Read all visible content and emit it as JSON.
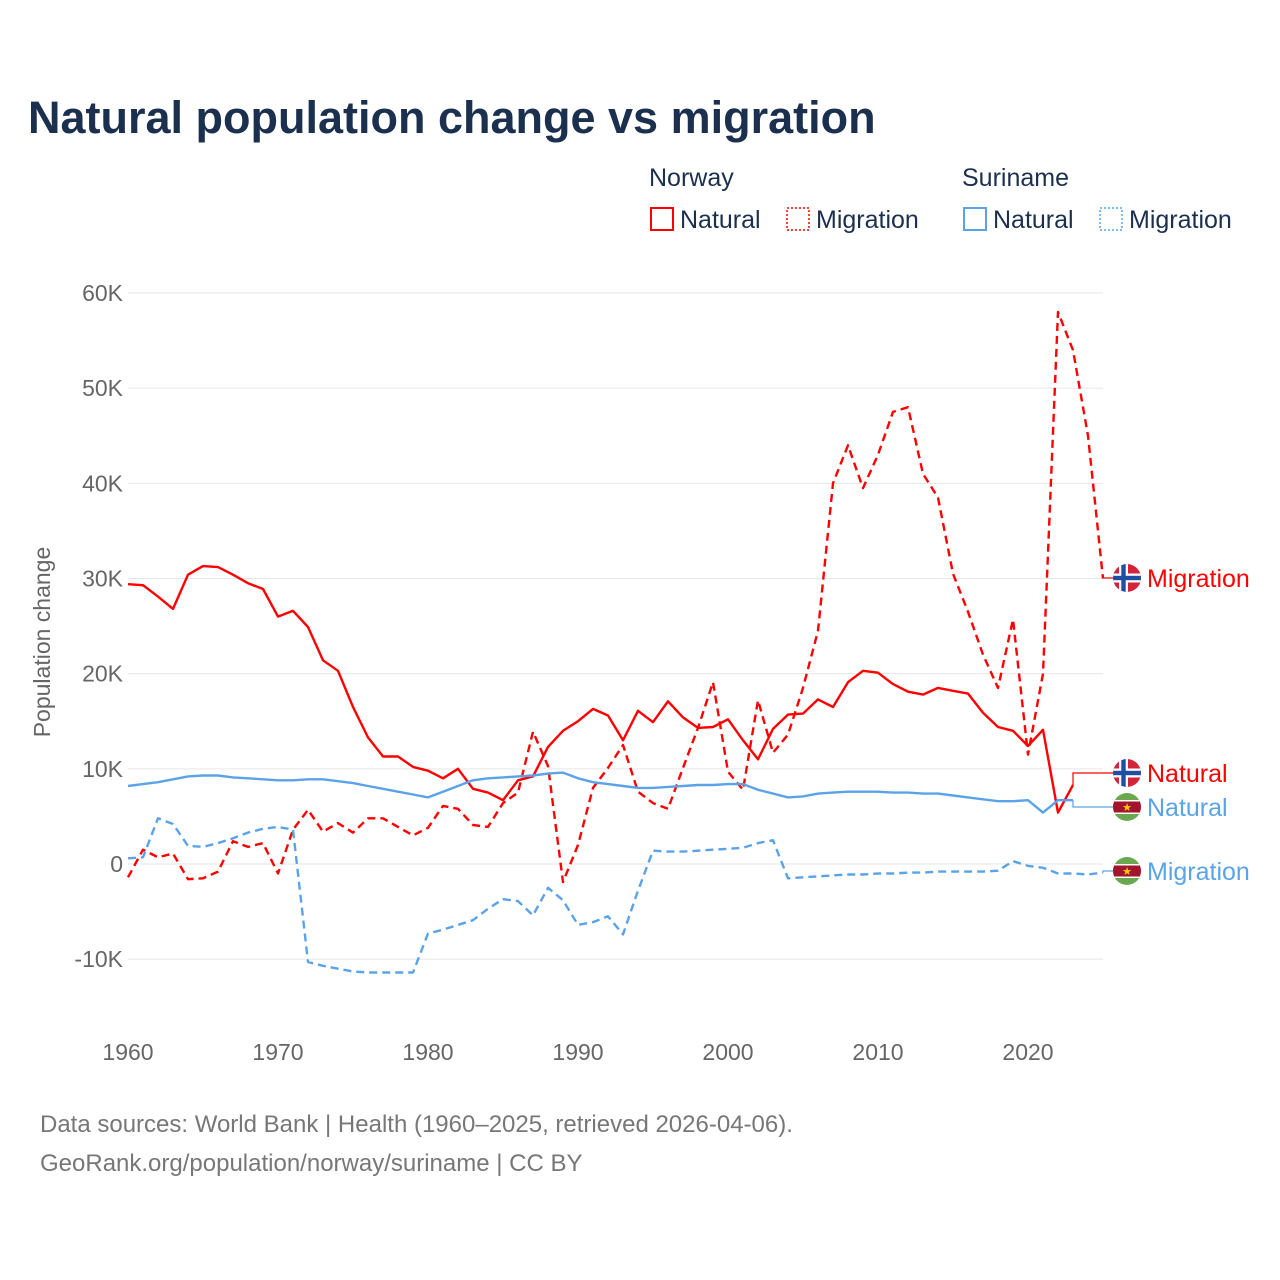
{
  "chart_data": {
    "type": "line",
    "title": "Natural population change vs migration",
    "ylabel": "Population change",
    "xlabel": "",
    "ylim": [
      -15000,
      62000
    ],
    "xlim": [
      1960,
      2025
    ],
    "grid": true,
    "y_ticks": [
      {
        "value": 60000,
        "label": "60K"
      },
      {
        "value": 50000,
        "label": "50K"
      },
      {
        "value": 40000,
        "label": "40K"
      },
      {
        "value": 30000,
        "label": "30K"
      },
      {
        "value": 20000,
        "label": "20K"
      },
      {
        "value": 10000,
        "label": "10K"
      },
      {
        "value": 0,
        "label": "0"
      },
      {
        "value": -10000,
        "label": "-10K"
      }
    ],
    "x_ticks": [
      {
        "value": 1960,
        "label": "1960"
      },
      {
        "value": 1970,
        "label": "1970"
      },
      {
        "value": 1980,
        "label": "1980"
      },
      {
        "value": 1990,
        "label": "1990"
      },
      {
        "value": 2000,
        "label": "2000"
      },
      {
        "value": 2010,
        "label": "2010"
      },
      {
        "value": 2020,
        "label": "2020"
      }
    ],
    "legend": {
      "placement": "top-right",
      "groups": [
        {
          "country": "Norway",
          "items": [
            "Natural",
            "Migration"
          ]
        },
        {
          "country": "Suriname",
          "items": [
            "Natural",
            "Migration"
          ]
        }
      ]
    },
    "series": [
      {
        "name": "Norway Natural",
        "country": "Norway",
        "kind": "Natural",
        "end_label": "Natural",
        "color": "#ff0000",
        "dashed": false,
        "start_year": 1960,
        "values": [
          29400,
          29300,
          28100,
          26800,
          30400,
          31300,
          31200,
          30400,
          29500,
          28900,
          26000,
          26600,
          24900,
          21400,
          20300,
          16500,
          13300,
          11300,
          11300,
          10200,
          9800,
          9000,
          10000,
          7900,
          7500,
          6700,
          8800,
          9200,
          12300,
          14000,
          15000,
          16300,
          15600,
          13000,
          16100,
          14900,
          17100,
          15400,
          14300,
          14400,
          15200,
          13000,
          11000,
          14200,
          15700,
          15800,
          17300,
          16500,
          19100,
          20300,
          20100,
          18900,
          18100,
          17800,
          18500,
          18200,
          17900,
          15900,
          14400,
          14000,
          12400,
          14100,
          5400,
          8300
        ]
      },
      {
        "name": "Norway Migration",
        "country": "Norway",
        "kind": "Migration",
        "end_label": "Migration",
        "color": "#ff0000",
        "dashed": true,
        "start_year": 1960,
        "values": [
          -1400,
          1500,
          700,
          1100,
          -1600,
          -1500,
          -800,
          2400,
          1800,
          2200,
          -1000,
          3600,
          5700,
          3400,
          4300,
          3300,
          4800,
          4800,
          3900,
          3000,
          3800,
          6100,
          5800,
          4100,
          3900,
          6400,
          7500,
          13900,
          10300,
          -1900,
          2000,
          8000,
          10100,
          12500,
          7600,
          6400,
          5800,
          10100,
          14300,
          19100,
          9700,
          7800,
          17200,
          11700,
          13600,
          18500,
          24500,
          40000,
          44000,
          39500,
          43000,
          47500,
          48000,
          41000,
          38500,
          30500,
          26500,
          22000,
          18500,
          25700,
          11500,
          20000,
          58000,
          54000,
          45000,
          30000
        ]
      },
      {
        "name": "Suriname Natural",
        "country": "Suriname",
        "kind": "Natural",
        "end_label": "Natural",
        "color": "#5ba3e8",
        "dashed": false,
        "start_year": 1960,
        "values": [
          8200,
          8400,
          8600,
          8900,
          9200,
          9300,
          9300,
          9100,
          9000,
          8900,
          8800,
          8800,
          8900,
          8900,
          8700,
          8500,
          8200,
          7900,
          7600,
          7300,
          7000,
          7600,
          8200,
          8800,
          9000,
          9100,
          9200,
          9300,
          9500,
          9600,
          9000,
          8600,
          8400,
          8200,
          8000,
          8000,
          8100,
          8200,
          8300,
          8300,
          8400,
          8400,
          7800,
          7400,
          7000,
          7100,
          7400,
          7500,
          7600,
          7600,
          7600,
          7500,
          7500,
          7400,
          7400,
          7200,
          7000,
          6800,
          6600,
          6600,
          6700,
          5400,
          6700,
          6700
        ]
      },
      {
        "name": "Suriname Migration",
        "country": "Suriname",
        "kind": "Migration",
        "end_label": "Migration",
        "color": "#5ba3e8",
        "dashed": true,
        "start_year": 1960,
        "values": [
          600,
          700,
          4800,
          4200,
          1900,
          1800,
          2200,
          2700,
          3300,
          3700,
          3900,
          3600,
          -10300,
          -10700,
          -11000,
          -11300,
          -11400,
          -11400,
          -11400,
          -11400,
          -7300,
          -6900,
          -6400,
          -5900,
          -4700,
          -3700,
          -3900,
          -5400,
          -2500,
          -3800,
          -6400,
          -6100,
          -5500,
          -7400,
          -2800,
          1400,
          1300,
          1300,
          1400,
          1500,
          1600,
          1700,
          2200,
          2500,
          -1500,
          -1400,
          -1300,
          -1200,
          -1100,
          -1100,
          -1000,
          -1000,
          -900,
          -900,
          -800,
          -800,
          -800,
          -800,
          -700,
          300,
          -200,
          -400,
          -1000,
          -1000,
          -1100,
          -900
        ]
      }
    ]
  },
  "footer": {
    "line1": "Data sources: World Bank | Health (1960–2025, retrieved 2026-04-06).",
    "line2": "GeoRank.org/population/norway/suriname | CC BY"
  },
  "colors": {
    "norway": "#ff0000",
    "suriname": "#5ba3e8",
    "title": "#1b2f4e",
    "grid": "#e6e6e6"
  }
}
